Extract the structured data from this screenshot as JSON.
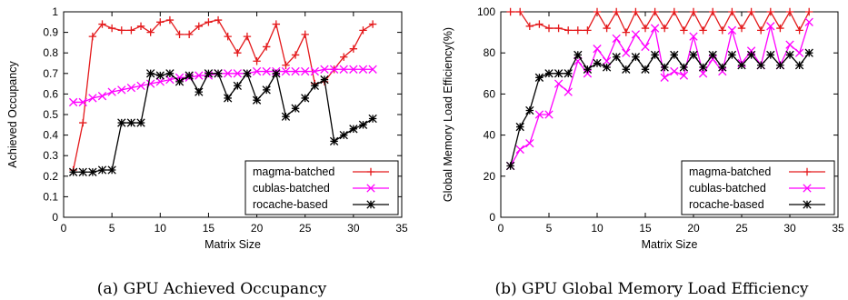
{
  "chart_data": [
    {
      "type": "line",
      "xlabel": "Matrix Size",
      "ylabel": "Achieved Occupancy",
      "caption": "(a) GPU Achieved Occupancy",
      "xlim": [
        0,
        35
      ],
      "ylim": [
        0,
        1
      ],
      "xticks": [
        "0",
        "5",
        "10",
        "15",
        "20",
        "25",
        "30",
        "35"
      ],
      "yticks": [
        "0",
        "0.1",
        "0.2",
        "0.3",
        "0.4",
        "0.5",
        "0.6",
        "0.7",
        "0.8",
        "0.9",
        "1"
      ],
      "legend_position": "bottom-right",
      "x": [
        1,
        2,
        3,
        4,
        5,
        6,
        7,
        8,
        9,
        10,
        11,
        12,
        13,
        14,
        15,
        16,
        17,
        18,
        19,
        20,
        21,
        22,
        23,
        24,
        25,
        26,
        27,
        28,
        29,
        30,
        31,
        32
      ],
      "series": [
        {
          "name": "magma-batched",
          "color": "#e41a1c",
          "marker": "plus",
          "values": [
            0.23,
            0.46,
            0.88,
            0.94,
            0.92,
            0.91,
            0.91,
            0.93,
            0.9,
            0.95,
            0.96,
            0.89,
            0.89,
            0.93,
            0.95,
            0.96,
            0.88,
            0.8,
            0.88,
            0.76,
            0.83,
            0.94,
            0.74,
            0.79,
            0.89,
            0.65,
            0.66,
            0.72,
            0.78,
            0.82,
            0.91,
            0.94
          ]
        },
        {
          "name": "cublas-batched",
          "color": "#ff00ff",
          "marker": "cross",
          "values": [
            0.56,
            0.56,
            0.58,
            0.59,
            0.61,
            0.62,
            0.63,
            0.64,
            0.65,
            0.66,
            0.67,
            0.68,
            0.68,
            0.69,
            0.69,
            0.7,
            0.7,
            0.7,
            0.7,
            0.71,
            0.71,
            0.71,
            0.71,
            0.71,
            0.71,
            0.71,
            0.72,
            0.72,
            0.72,
            0.72,
            0.72,
            0.72
          ]
        },
        {
          "name": "rocache-based",
          "color": "#000000",
          "marker": "star",
          "values": [
            0.22,
            0.22,
            0.22,
            0.23,
            0.23,
            0.46,
            0.46,
            0.46,
            0.7,
            0.69,
            0.7,
            0.66,
            0.69,
            0.61,
            0.7,
            0.7,
            0.58,
            0.64,
            0.7,
            0.57,
            0.62,
            0.7,
            0.49,
            0.53,
            0.58,
            0.64,
            0.67,
            0.37,
            0.4,
            0.43,
            0.45,
            0.48
          ]
        }
      ]
    },
    {
      "type": "line",
      "xlabel": "Matrix Size",
      "ylabel": "Global Memory Load Efficiency(%)",
      "caption": "(b) GPU Global Memory Load Efficiency",
      "xlim": [
        0,
        35
      ],
      "ylim": [
        0,
        100
      ],
      "xticks": [
        "0",
        "5",
        "10",
        "15",
        "20",
        "25",
        "30",
        "35"
      ],
      "yticks": [
        "0",
        "20",
        "40",
        "60",
        "80",
        "100"
      ],
      "legend_position": "bottom-right",
      "x": [
        1,
        2,
        3,
        4,
        5,
        6,
        7,
        8,
        9,
        10,
        11,
        12,
        13,
        14,
        15,
        16,
        17,
        18,
        19,
        20,
        21,
        22,
        23,
        24,
        25,
        26,
        27,
        28,
        29,
        30,
        31,
        32
      ],
      "series": [
        {
          "name": "magma-batched",
          "color": "#e41a1c",
          "marker": "plus",
          "values": [
            100,
            100,
            93,
            94,
            92,
            92,
            91,
            91,
            91,
            100,
            92,
            100,
            90,
            100,
            92,
            100,
            92,
            100,
            91,
            100,
            91,
            100,
            91,
            100,
            92,
            100,
            91,
            100,
            92,
            100,
            91,
            100
          ]
        },
        {
          "name": "cublas-batched",
          "color": "#ff00ff",
          "marker": "cross",
          "values": [
            25,
            33,
            36,
            50,
            50,
            65,
            61,
            76,
            70,
            82,
            76,
            87,
            80,
            89,
            83,
            92,
            68,
            71,
            69,
            88,
            70,
            77,
            71,
            91,
            75,
            81,
            74,
            93,
            74,
            84,
            80,
            95
          ]
        },
        {
          "name": "rocache-based",
          "color": "#000000",
          "marker": "star",
          "values": [
            25,
            44,
            52,
            68,
            70,
            70,
            70,
            79,
            72,
            75,
            73,
            78,
            72,
            78,
            72,
            79,
            73,
            79,
            73,
            79,
            73,
            79,
            73,
            79,
            74,
            79,
            74,
            79,
            74,
            79,
            74,
            80
          ]
        }
      ]
    }
  ]
}
